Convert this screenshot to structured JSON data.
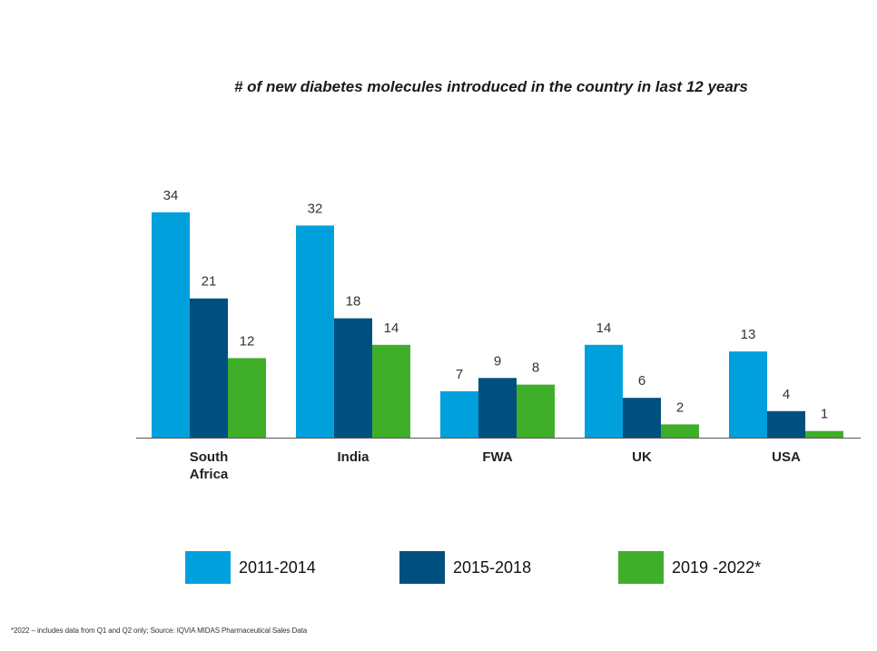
{
  "chart_data": {
    "type": "bar",
    "title": "# of new diabetes molecules introduced in the country in last 12 years",
    "categories": [
      "South Africa",
      "India",
      "FWA",
      "UK",
      "USA"
    ],
    "category_lines": [
      [
        "South",
        "Africa"
      ],
      [
        "India"
      ],
      [
        "FWA"
      ],
      [
        "UK"
      ],
      [
        "USA"
      ]
    ],
    "series": [
      {
        "name": "2011-2014",
        "color": "#00a0dd",
        "values": [
          34,
          32,
          7,
          14,
          13
        ]
      },
      {
        "name": "2015-2018",
        "color": "#00507f",
        "values": [
          21,
          18,
          9,
          6,
          4
        ]
      },
      {
        "name": "2019 -2022*",
        "color": "#3faf2a",
        "values": [
          12,
          14,
          8,
          2,
          1
        ]
      }
    ],
    "ylim": [
      0,
      34
    ],
    "xlabel": "",
    "ylabel": "",
    "grid": false,
    "legend_position": "bottom"
  },
  "footnote": "*2022 – includes data from Q1 and Q2 only; Source: IQVIA MIDAS Pharmaceutical Sales Data"
}
